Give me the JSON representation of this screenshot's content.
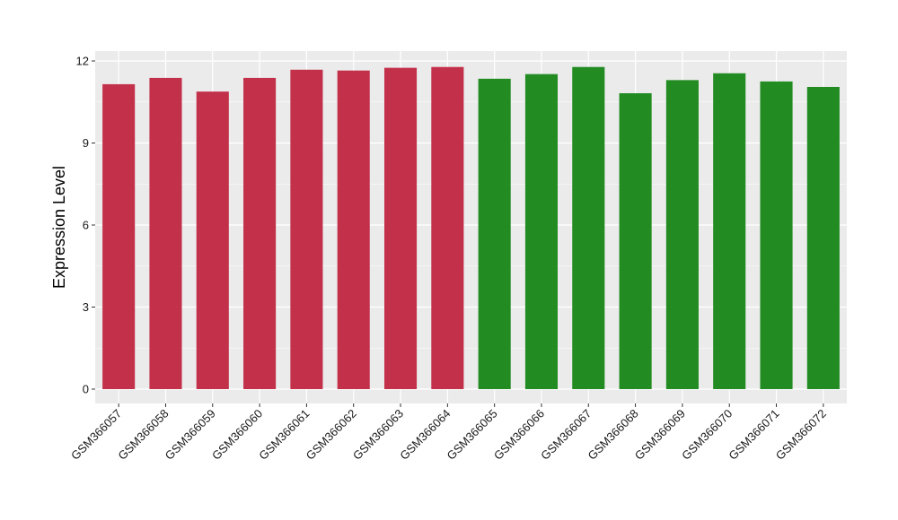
{
  "chart_data": {
    "type": "bar",
    "title": "",
    "xlabel": "",
    "ylabel": "Expression Level",
    "ylim": [
      0,
      12.5
    ],
    "yticks": [
      0,
      3,
      6,
      9,
      12
    ],
    "grid": true,
    "legend": "none",
    "panel_color": "#ebebeb",
    "grid_color": "#ffffff",
    "categories": [
      "GSM366057",
      "GSM366058",
      "GSM366059",
      "GSM366060",
      "GSM366061",
      "GSM366062",
      "GSM366063",
      "GSM366064",
      "GSM366065",
      "GSM366066",
      "GSM366067",
      "GSM366068",
      "GSM366069",
      "GSM366070",
      "GSM366071",
      "GSM366072"
    ],
    "values": [
      11.15,
      11.38,
      10.88,
      11.38,
      11.68,
      11.65,
      11.75,
      11.78,
      11.35,
      11.52,
      11.78,
      10.82,
      11.3,
      11.55,
      11.25,
      11.05
    ],
    "bar_colors": [
      "#c3304a",
      "#c3304a",
      "#c3304a",
      "#c3304a",
      "#c3304a",
      "#c3304a",
      "#c3304a",
      "#c3304a",
      "#228b22",
      "#228b22",
      "#228b22",
      "#228b22",
      "#228b22",
      "#228b22",
      "#228b22",
      "#228b22"
    ]
  }
}
